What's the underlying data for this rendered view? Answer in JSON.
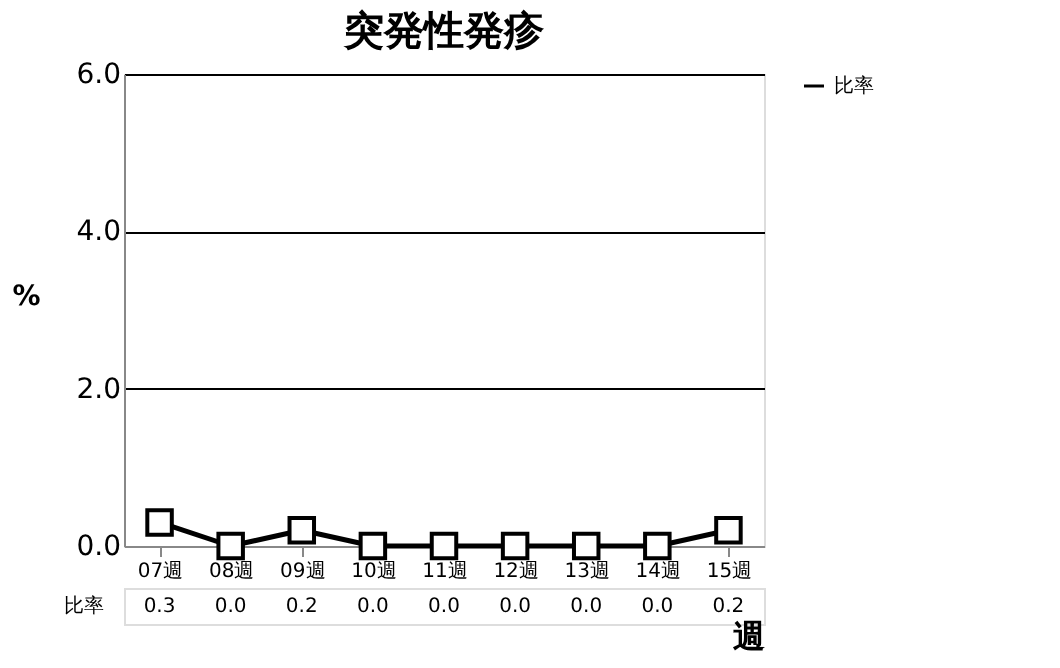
{
  "chart_data": {
    "type": "line",
    "title": "突発性発疹",
    "ylabel": "%",
    "xlabel": "週",
    "categories": [
      "07週",
      "08週",
      "09週",
      "10週",
      "11週",
      "12週",
      "13週",
      "14週",
      "15週"
    ],
    "series": [
      {
        "name": "比率",
        "color": "#000000",
        "values": [
          0.3,
          0.0,
          0.2,
          0.0,
          0.0,
          0.0,
          0.0,
          0.0,
          0.2
        ],
        "value_labels": [
          "0.3",
          "0.0",
          "0.2",
          "0.0",
          "0.0",
          "0.0",
          "0.0",
          "0.0",
          "0.2"
        ]
      }
    ],
    "ylim": [
      0,
      6
    ],
    "yticks": [
      {
        "value": 0,
        "label": "0.0"
      },
      {
        "value": 2,
        "label": "2.0"
      },
      {
        "value": 4,
        "label": "4.0"
      },
      {
        "value": 6,
        "label": "6.0"
      }
    ],
    "grid": "y",
    "legend": "top right",
    "marker": "square",
    "line_style": "solid"
  }
}
